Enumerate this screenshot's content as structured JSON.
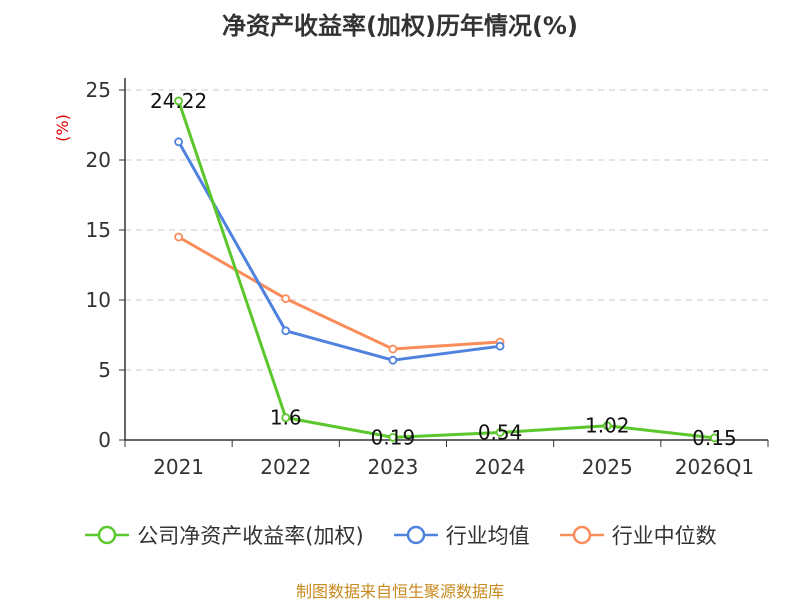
{
  "title": "净资产收益率(加权)历年情况(%)",
  "source": "制图数据来自恒生聚源数据库",
  "chart_data": {
    "type": "line",
    "title": "净资产收益率(加权)历年情况(%)",
    "xlabel": "",
    "ylabel": "(%)",
    "ylim": [
      0,
      25
    ],
    "yticks": [
      0,
      5,
      10,
      15,
      20,
      25
    ],
    "grid": true,
    "legend_position": "bottom",
    "categories": [
      "2021",
      "2022",
      "2023",
      "2024",
      "2025",
      "2026Q1"
    ],
    "series": [
      {
        "name": "公司净资产收益率(加权)",
        "color": "#5cc72c",
        "values": [
          24.22,
          1.6,
          0.19,
          0.54,
          1.02,
          0.15
        ],
        "labels": true
      },
      {
        "name": "行业均值",
        "color": "#4f82dd",
        "values": [
          21.3,
          7.8,
          5.7,
          6.7,
          null,
          null
        ],
        "labels": false
      },
      {
        "name": "行业中位数",
        "color": "#f98d5a",
        "values": [
          14.5,
          10.1,
          6.5,
          7.0,
          null,
          null
        ],
        "labels": false
      }
    ]
  }
}
